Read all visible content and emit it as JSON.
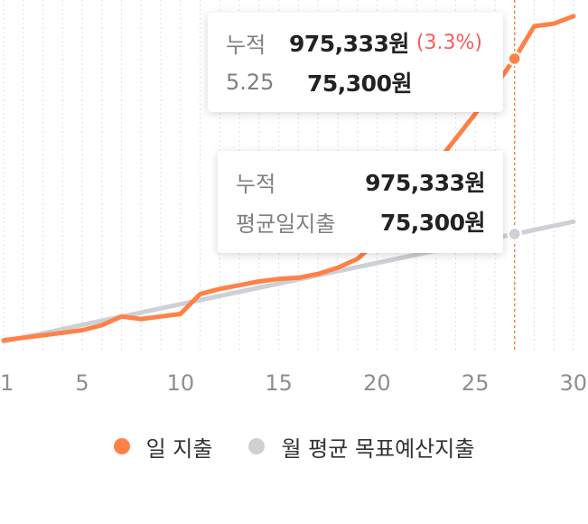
{
  "chart_data": {
    "type": "line",
    "x": [
      1,
      2,
      3,
      4,
      5,
      6,
      7,
      8,
      9,
      10,
      11,
      12,
      13,
      14,
      15,
      16,
      17,
      18,
      19,
      20,
      21,
      22,
      23,
      24,
      25,
      26,
      27,
      28,
      29,
      30
    ],
    "x_tick_labels": [
      "1",
      "5",
      "10",
      "15",
      "20",
      "25",
      "30"
    ],
    "xlim": [
      1,
      30
    ],
    "grid": true,
    "series": [
      {
        "name": "일 지출",
        "color": "#ff8147",
        "values": [
          1,
          3,
          5,
          7,
          9,
          13,
          20,
          18,
          20,
          22,
          38,
          42,
          45,
          48,
          50,
          51,
          54,
          59,
          66,
          80,
          102,
          122,
          142,
          162,
          182,
          204,
          226,
          252,
          254,
          260
        ]
      },
      {
        "name": "월 평균 목표예산지출",
        "color": "#cdd0d4",
        "values": [
          0,
          3.3,
          6.6,
          9.9,
          13.2,
          16.6,
          19.9,
          23.2,
          26.5,
          29.8,
          33.1,
          36.4,
          39.7,
          43,
          46.3,
          49.6,
          52.9,
          56.2,
          59.5,
          62.8,
          66.1,
          69.4,
          72.7,
          76,
          79.3,
          82.6,
          85.9,
          89.2,
          92.5,
          95.8
        ]
      }
    ],
    "marker_x": 27,
    "marker_color": "#ff8147"
  },
  "tooltip_top": {
    "row1": {
      "label": "누적",
      "value": "975,333원",
      "pct": "(3.3%)"
    },
    "row2": {
      "label": "5.25",
      "value": "75,300원"
    },
    "pct_color": "#ff5a5a"
  },
  "tooltip_bottom": {
    "row1": {
      "label": "누적",
      "value": "975,333원"
    },
    "row2": {
      "label": "평균일지출",
      "value": "75,300원"
    }
  },
  "legend": [
    {
      "label": "일 지출",
      "color": "#ff8147"
    },
    {
      "label": "월 평균 목표예산지출",
      "color": "#cdd0d4"
    }
  ]
}
